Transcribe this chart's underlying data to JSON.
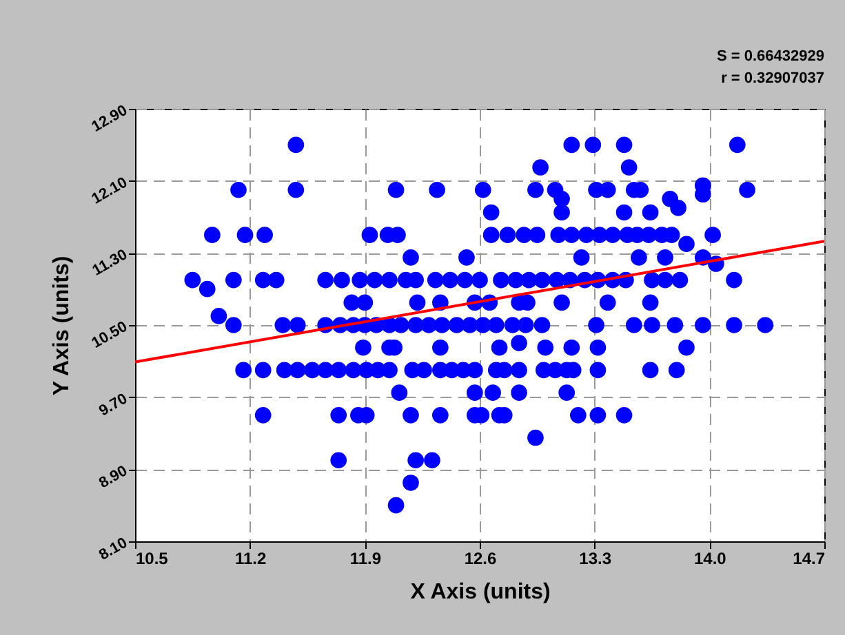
{
  "chart_data": {
    "type": "scatter",
    "xlabel": "X Axis (units)",
    "ylabel": "Y Axis (units)",
    "annotations": [
      "S = 0.66432929",
      "r = 0.32907037"
    ],
    "xlim": [
      10.5,
      14.7
    ],
    "ylim": [
      8.1,
      12.9
    ],
    "xticks": [
      10.5,
      11.2,
      11.9,
      12.6,
      13.3,
      {
        "value": 14,
        "label": "14.0"
      },
      14.7
    ],
    "yticks": [
      {
        "value": 8.1,
        "label": "8.10"
      },
      {
        "value": 8.9,
        "label": "8.90"
      },
      {
        "value": 9.7,
        "label": "9.70"
      },
      {
        "value": 10.5,
        "label": "10.50"
      },
      {
        "value": 11.3,
        "label": "11.30"
      },
      {
        "value": 12.1,
        "label": "12.10"
      },
      {
        "value": 12.9,
        "label": "12.90"
      }
    ],
    "grid": true,
    "series": [
      {
        "color": "#0000ff",
        "marker": "circle",
        "x": [
          11.48,
          13.16,
          13.29,
          13.48,
          14.17,
          12.97,
          13.51,
          11.13,
          11.48,
          12.09,
          12.34,
          12.62,
          12.94,
          13.06,
          13.31,
          13.38,
          13.54,
          13.58,
          13.96,
          13.96,
          14.23,
          13.1,
          13.76,
          13.81,
          12.67,
          13.1,
          13.48,
          13.64,
          10.97,
          11.17,
          11.29,
          11.93,
          12.04,
          12.1,
          12.67,
          12.77,
          12.87,
          12.95,
          13.08,
          13.16,
          13.25,
          13.33,
          13.41,
          13.5,
          13.56,
          13.63,
          13.71,
          13.77,
          14.02,
          12.18,
          12.52,
          13.22,
          13.57,
          13.73,
          13.86,
          13.96,
          14.04,
          10.85,
          11.1,
          11.28,
          11.36,
          11.66,
          11.76,
          11.87,
          11.96,
          12.05,
          12.15,
          12.21,
          12.33,
          12.42,
          12.51,
          12.6,
          12.73,
          12.82,
          12.9,
          12.98,
          13.07,
          13.15,
          13.24,
          13.32,
          13.41,
          13.49,
          13.65,
          13.73,
          13.82,
          14.15,
          10.94,
          11.82,
          11.9,
          12.22,
          12.36,
          12.57,
          12.66,
          12.84,
          12.89,
          13.1,
          13.38,
          13.64,
          11.01,
          11.1,
          11.4,
          11.49,
          11.66,
          11.75,
          11.83,
          11.9,
          11.97,
          12.05,
          12.12,
          12.21,
          12.29,
          12.37,
          12.46,
          12.54,
          12.62,
          12.7,
          12.8,
          12.88,
          12.98,
          13.31,
          13.54,
          13.65,
          13.79,
          13.96,
          14.15,
          14.34,
          11.89,
          12.05,
          12.08,
          12.36,
          12.72,
          12.84,
          13.0,
          13.16,
          13.32,
          13.86,
          11.16,
          11.28,
          11.41,
          11.49,
          11.58,
          11.66,
          11.74,
          11.83,
          11.91,
          11.98,
          12.05,
          12.19,
          12.26,
          12.36,
          12.43,
          12.5,
          12.57,
          12.7,
          12.75,
          12.84,
          12.99,
          13.06,
          13.13,
          13.17,
          13.32,
          13.64,
          13.8,
          12.11,
          12.57,
          12.68,
          12.84,
          13.13,
          11.28,
          11.74,
          11.86,
          11.91,
          12.18,
          12.36,
          12.57,
          12.61,
          12.72,
          12.75,
          13.2,
          13.32,
          13.48,
          12.94,
          11.74,
          12.21,
          12.31,
          12.18,
          12.09
        ],
        "values": [
          12.5,
          12.5,
          12.5,
          12.5,
          12.5,
          12.25,
          12.25,
          12.0,
          12.0,
          12.0,
          12.0,
          12.0,
          12.0,
          12.0,
          12.0,
          12.0,
          12.0,
          12.0,
          12.05,
          11.95,
          12.0,
          11.9,
          11.9,
          11.8,
          11.75,
          11.75,
          11.75,
          11.75,
          11.5,
          11.5,
          11.5,
          11.5,
          11.5,
          11.5,
          11.5,
          11.5,
          11.5,
          11.5,
          11.5,
          11.5,
          11.5,
          11.5,
          11.5,
          11.5,
          11.5,
          11.5,
          11.5,
          11.5,
          11.5,
          11.25,
          11.25,
          11.25,
          11.25,
          11.25,
          11.4,
          11.25,
          11.18,
          11.0,
          11.0,
          11.0,
          11.0,
          11.0,
          11.0,
          11.0,
          11.0,
          11.0,
          11.0,
          11.0,
          11.0,
          11.0,
          11.0,
          11.0,
          11.0,
          11.0,
          11.0,
          11.0,
          11.0,
          11.0,
          11.0,
          11.0,
          11.0,
          11.0,
          11.0,
          11.0,
          11.0,
          11.0,
          10.9,
          10.75,
          10.75,
          10.75,
          10.75,
          10.75,
          10.75,
          10.75,
          10.75,
          10.75,
          10.75,
          10.75,
          10.6,
          10.5,
          10.5,
          10.5,
          10.5,
          10.5,
          10.5,
          10.5,
          10.5,
          10.5,
          10.5,
          10.5,
          10.5,
          10.5,
          10.5,
          10.5,
          10.5,
          10.5,
          10.5,
          10.5,
          10.5,
          10.5,
          10.5,
          10.5,
          10.5,
          10.5,
          10.5,
          10.5,
          10.25,
          10.25,
          10.25,
          10.25,
          10.25,
          10.3,
          10.25,
          10.25,
          10.25,
          10.25,
          10.0,
          10.0,
          10.0,
          10.0,
          10.0,
          10.0,
          10.0,
          10.0,
          10.0,
          10.0,
          10.0,
          10.0,
          10.0,
          10.0,
          10.0,
          10.0,
          10.0,
          10.0,
          10.0,
          10.0,
          10.0,
          10.0,
          10.0,
          10.0,
          10.0,
          10.0,
          10.0,
          9.75,
          9.75,
          9.75,
          9.75,
          9.75,
          9.5,
          9.5,
          9.5,
          9.5,
          9.5,
          9.5,
          9.5,
          9.5,
          9.5,
          9.5,
          9.5,
          9.5,
          9.5,
          9.25,
          9.0,
          9.0,
          9.0,
          8.75,
          8.5
        ]
      },
      {
        "type": "line",
        "color": "#ff0000",
        "x": [
          10.5,
          14.7
        ],
        "values": [
          10.09,
          11.43
        ]
      }
    ]
  }
}
